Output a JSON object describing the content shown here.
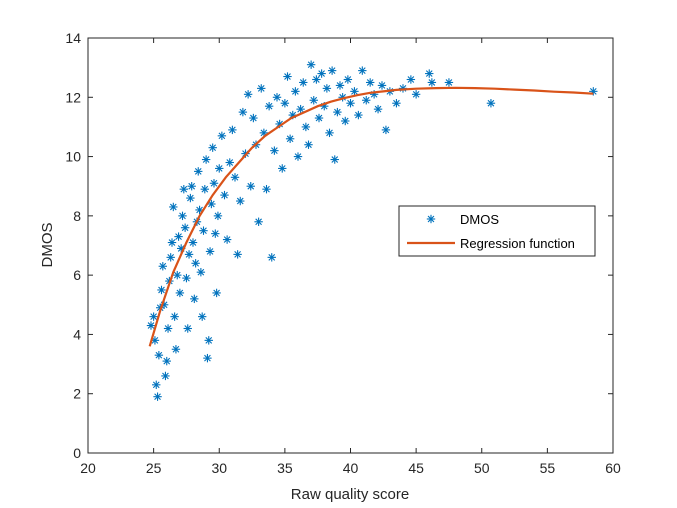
{
  "chart_data": {
    "type": "scatter",
    "xlabel": "Raw quality score",
    "ylabel": "DMOS",
    "xlim": [
      20,
      60
    ],
    "ylim": [
      0,
      14
    ],
    "xticks": [
      20,
      25,
      30,
      35,
      40,
      45,
      50,
      55,
      60
    ],
    "yticks": [
      0,
      2,
      4,
      6,
      8,
      10,
      12,
      14
    ],
    "xtick_labels": [
      "20",
      "25",
      "30",
      "35",
      "40",
      "45",
      "50",
      "55",
      "60"
    ],
    "ytick_labels": [
      "0",
      "2",
      "4",
      "6",
      "8",
      "10",
      "12",
      "14"
    ],
    "grid": false,
    "legend_position": "center-right",
    "series": [
      {
        "name": "DMOS",
        "kind": "scatter",
        "marker": "asterisk",
        "color": "#0072BD",
        "points": [
          [
            24.8,
            4.3
          ],
          [
            25.0,
            4.6
          ],
          [
            25.1,
            3.8
          ],
          [
            25.2,
            2.3
          ],
          [
            25.3,
            1.9
          ],
          [
            25.4,
            3.3
          ],
          [
            25.5,
            4.9
          ],
          [
            25.6,
            5.5
          ],
          [
            25.7,
            6.3
          ],
          [
            25.8,
            5.0
          ],
          [
            25.9,
            2.6
          ],
          [
            26.0,
            3.1
          ],
          [
            26.1,
            4.2
          ],
          [
            26.2,
            5.8
          ],
          [
            26.3,
            6.6
          ],
          [
            26.4,
            7.1
          ],
          [
            26.5,
            8.3
          ],
          [
            26.6,
            4.6
          ],
          [
            26.7,
            3.5
          ],
          [
            26.8,
            6.0
          ],
          [
            26.9,
            7.3
          ],
          [
            27.0,
            5.4
          ],
          [
            27.1,
            6.9
          ],
          [
            27.2,
            8.0
          ],
          [
            27.3,
            8.9
          ],
          [
            27.4,
            7.6
          ],
          [
            27.5,
            5.9
          ],
          [
            27.6,
            4.2
          ],
          [
            27.7,
            6.7
          ],
          [
            27.8,
            8.6
          ],
          [
            27.9,
            9.0
          ],
          [
            28.0,
            7.1
          ],
          [
            28.1,
            5.2
          ],
          [
            28.2,
            6.4
          ],
          [
            28.3,
            7.8
          ],
          [
            28.4,
            9.5
          ],
          [
            28.5,
            8.2
          ],
          [
            28.6,
            6.1
          ],
          [
            28.7,
            4.6
          ],
          [
            28.8,
            7.5
          ],
          [
            28.9,
            8.9
          ],
          [
            29.0,
            9.9
          ],
          [
            29.1,
            3.2
          ],
          [
            29.2,
            3.8
          ],
          [
            29.3,
            6.8
          ],
          [
            29.4,
            8.4
          ],
          [
            29.5,
            10.3
          ],
          [
            29.6,
            9.1
          ],
          [
            29.7,
            7.4
          ],
          [
            29.8,
            5.4
          ],
          [
            29.9,
            8.0
          ],
          [
            30.0,
            9.6
          ],
          [
            30.2,
            10.7
          ],
          [
            30.4,
            8.7
          ],
          [
            30.6,
            7.2
          ],
          [
            30.8,
            9.8
          ],
          [
            31.0,
            10.9
          ],
          [
            31.2,
            9.3
          ],
          [
            31.4,
            6.7
          ],
          [
            31.6,
            8.5
          ],
          [
            31.8,
            11.5
          ],
          [
            32.0,
            10.1
          ],
          [
            32.2,
            12.1
          ],
          [
            32.4,
            9.0
          ],
          [
            32.6,
            11.3
          ],
          [
            32.8,
            10.4
          ],
          [
            33.0,
            7.8
          ],
          [
            33.2,
            12.3
          ],
          [
            33.4,
            10.8
          ],
          [
            33.6,
            8.9
          ],
          [
            33.8,
            11.7
          ],
          [
            34.0,
            6.6
          ],
          [
            34.2,
            10.2
          ],
          [
            34.4,
            12.0
          ],
          [
            34.6,
            11.1
          ],
          [
            34.8,
            9.6
          ],
          [
            35.0,
            11.8
          ],
          [
            35.2,
            12.7
          ],
          [
            35.4,
            10.6
          ],
          [
            35.6,
            11.4
          ],
          [
            35.8,
            12.2
          ],
          [
            36.0,
            10.0
          ],
          [
            36.2,
            11.6
          ],
          [
            36.4,
            12.5
          ],
          [
            36.6,
            11.0
          ],
          [
            36.8,
            10.4
          ],
          [
            37.0,
            13.1
          ],
          [
            37.2,
            11.9
          ],
          [
            37.4,
            12.6
          ],
          [
            37.6,
            11.3
          ],
          [
            37.8,
            12.8
          ],
          [
            38.0,
            11.7
          ],
          [
            38.2,
            12.3
          ],
          [
            38.4,
            10.8
          ],
          [
            38.6,
            12.9
          ],
          [
            38.8,
            9.9
          ],
          [
            39.0,
            11.5
          ],
          [
            39.2,
            12.4
          ],
          [
            39.4,
            12.0
          ],
          [
            39.6,
            11.2
          ],
          [
            39.8,
            12.6
          ],
          [
            40.0,
            11.8
          ],
          [
            40.3,
            12.2
          ],
          [
            40.6,
            11.4
          ],
          [
            40.9,
            12.9
          ],
          [
            41.2,
            11.9
          ],
          [
            41.5,
            12.5
          ],
          [
            41.8,
            12.1
          ],
          [
            42.1,
            11.6
          ],
          [
            42.4,
            12.4
          ],
          [
            42.7,
            10.9
          ],
          [
            43.0,
            12.2
          ],
          [
            43.5,
            11.8
          ],
          [
            44.0,
            12.3
          ],
          [
            44.6,
            12.6
          ],
          [
            45.0,
            12.1
          ],
          [
            46.0,
            12.8
          ],
          [
            46.2,
            12.5
          ],
          [
            47.5,
            12.5
          ],
          [
            50.7,
            11.8
          ],
          [
            58.5,
            12.2
          ]
        ]
      },
      {
        "name": "Regression function",
        "kind": "line",
        "color": "#D95319",
        "points": [
          [
            24.7,
            3.6
          ],
          [
            25.5,
            4.8
          ],
          [
            26.5,
            6.1
          ],
          [
            27.5,
            7.1
          ],
          [
            28.5,
            8.0
          ],
          [
            29.5,
            8.7
          ],
          [
            30.5,
            9.3
          ],
          [
            31.5,
            9.8
          ],
          [
            32.5,
            10.3
          ],
          [
            33.5,
            10.7
          ],
          [
            34.5,
            11.0
          ],
          [
            35.5,
            11.3
          ],
          [
            36.5,
            11.5
          ],
          [
            37.5,
            11.7
          ],
          [
            38.5,
            11.85
          ],
          [
            39.5,
            11.97
          ],
          [
            40.5,
            12.07
          ],
          [
            41.5,
            12.15
          ],
          [
            42.5,
            12.2
          ],
          [
            43.5,
            12.25
          ],
          [
            45.0,
            12.29
          ],
          [
            46.5,
            12.31
          ],
          [
            48.0,
            12.32
          ],
          [
            49.5,
            12.31
          ],
          [
            51.0,
            12.29
          ],
          [
            52.5,
            12.26
          ],
          [
            54.0,
            12.23
          ],
          [
            55.5,
            12.19
          ],
          [
            57.0,
            12.16
          ],
          [
            58.5,
            12.12
          ]
        ]
      }
    ]
  }
}
